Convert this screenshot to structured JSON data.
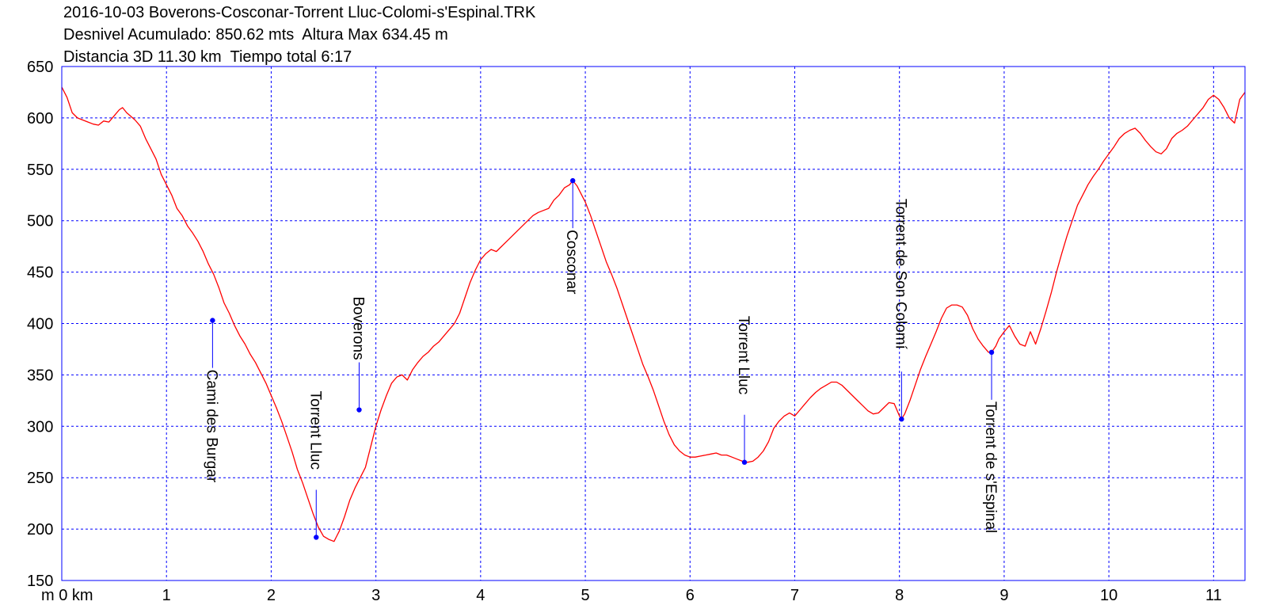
{
  "header": {
    "title": "2016-10-03 Boverons-Cosconar-Torrent Lluc-Colomi-s'Espinal.TRK",
    "line2": "Desnivel Acumulado: 850.62 mts  Altura Max 634.45 m",
    "line3": "Distancia 3D 11.30 km  Tiempo total 6:17"
  },
  "colors": {
    "profile": "#ff0000",
    "grid": "#0000ff",
    "waypoint": "#0000ff",
    "frame": "#0000ff"
  },
  "chart_data": {
    "type": "line",
    "grid": true,
    "xlim": [
      0,
      11.3
    ],
    "ylim": [
      150,
      650
    ],
    "x_unit_label": "m 0 km",
    "x_ticks": [
      1,
      2,
      3,
      4,
      5,
      6,
      7,
      8,
      9,
      10,
      11
    ],
    "y_ticks": [
      150,
      200,
      250,
      300,
      350,
      400,
      450,
      500,
      550,
      600,
      650
    ],
    "series": [
      {
        "points": [
          [
            0.0,
            630
          ],
          [
            0.05,
            620
          ],
          [
            0.1,
            605
          ],
          [
            0.15,
            600
          ],
          [
            0.2,
            598
          ],
          [
            0.25,
            596
          ],
          [
            0.3,
            594
          ],
          [
            0.35,
            593
          ],
          [
            0.4,
            597
          ],
          [
            0.45,
            596
          ],
          [
            0.5,
            602
          ],
          [
            0.55,
            608
          ],
          [
            0.58,
            610
          ],
          [
            0.62,
            605
          ],
          [
            0.7,
            598
          ],
          [
            0.75,
            592
          ],
          [
            0.8,
            580
          ],
          [
            0.85,
            570
          ],
          [
            0.9,
            560
          ],
          [
            0.95,
            545
          ],
          [
            1.0,
            535
          ],
          [
            1.05,
            525
          ],
          [
            1.1,
            512
          ],
          [
            1.15,
            505
          ],
          [
            1.2,
            495
          ],
          [
            1.25,
            488
          ],
          [
            1.3,
            480
          ],
          [
            1.35,
            470
          ],
          [
            1.4,
            458
          ],
          [
            1.45,
            448
          ],
          [
            1.5,
            435
          ],
          [
            1.55,
            420
          ],
          [
            1.6,
            410
          ],
          [
            1.65,
            398
          ],
          [
            1.7,
            388
          ],
          [
            1.75,
            380
          ],
          [
            1.8,
            370
          ],
          [
            1.85,
            362
          ],
          [
            1.9,
            352
          ],
          [
            1.95,
            342
          ],
          [
            2.0,
            330
          ],
          [
            2.05,
            318
          ],
          [
            2.1,
            305
          ],
          [
            2.15,
            290
          ],
          [
            2.2,
            275
          ],
          [
            2.25,
            258
          ],
          [
            2.3,
            245
          ],
          [
            2.35,
            230
          ],
          [
            2.4,
            215
          ],
          [
            2.45,
            202
          ],
          [
            2.5,
            193
          ],
          [
            2.55,
            190
          ],
          [
            2.6,
            188
          ],
          [
            2.62,
            192
          ],
          [
            2.65,
            198
          ],
          [
            2.7,
            212
          ],
          [
            2.75,
            228
          ],
          [
            2.8,
            240
          ],
          [
            2.85,
            250
          ],
          [
            2.9,
            260
          ],
          [
            2.95,
            280
          ],
          [
            3.0,
            300
          ],
          [
            3.05,
            316
          ],
          [
            3.1,
            330
          ],
          [
            3.15,
            342
          ],
          [
            3.2,
            348
          ],
          [
            3.25,
            350
          ],
          [
            3.3,
            345
          ],
          [
            3.35,
            355
          ],
          [
            3.4,
            362
          ],
          [
            3.45,
            368
          ],
          [
            3.5,
            372
          ],
          [
            3.55,
            378
          ],
          [
            3.6,
            382
          ],
          [
            3.65,
            388
          ],
          [
            3.7,
            394
          ],
          [
            3.75,
            400
          ],
          [
            3.8,
            410
          ],
          [
            3.85,
            425
          ],
          [
            3.9,
            440
          ],
          [
            3.95,
            452
          ],
          [
            4.0,
            462
          ],
          [
            4.05,
            468
          ],
          [
            4.1,
            472
          ],
          [
            4.15,
            470
          ],
          [
            4.2,
            475
          ],
          [
            4.25,
            480
          ],
          [
            4.3,
            485
          ],
          [
            4.35,
            490
          ],
          [
            4.4,
            495
          ],
          [
            4.45,
            500
          ],
          [
            4.5,
            505
          ],
          [
            4.55,
            508
          ],
          [
            4.6,
            510
          ],
          [
            4.65,
            512
          ],
          [
            4.7,
            520
          ],
          [
            4.75,
            525
          ],
          [
            4.8,
            532
          ],
          [
            4.85,
            535
          ],
          [
            4.88,
            539
          ],
          [
            4.92,
            534
          ],
          [
            4.95,
            528
          ],
          [
            5.0,
            518
          ],
          [
            5.05,
            505
          ],
          [
            5.1,
            490
          ],
          [
            5.15,
            475
          ],
          [
            5.2,
            460
          ],
          [
            5.25,
            448
          ],
          [
            5.3,
            435
          ],
          [
            5.35,
            420
          ],
          [
            5.4,
            405
          ],
          [
            5.45,
            390
          ],
          [
            5.5,
            375
          ],
          [
            5.55,
            360
          ],
          [
            5.6,
            348
          ],
          [
            5.65,
            335
          ],
          [
            5.7,
            320
          ],
          [
            5.75,
            305
          ],
          [
            5.8,
            292
          ],
          [
            5.85,
            282
          ],
          [
            5.9,
            276
          ],
          [
            5.95,
            272
          ],
          [
            6.0,
            270
          ],
          [
            6.05,
            270
          ],
          [
            6.1,
            271
          ],
          [
            6.15,
            272
          ],
          [
            6.2,
            273
          ],
          [
            6.25,
            274
          ],
          [
            6.3,
            272
          ],
          [
            6.35,
            272
          ],
          [
            6.4,
            270
          ],
          [
            6.45,
            268
          ],
          [
            6.5,
            266
          ],
          [
            6.55,
            265
          ],
          [
            6.6,
            266
          ],
          [
            6.65,
            270
          ],
          [
            6.7,
            276
          ],
          [
            6.75,
            285
          ],
          [
            6.8,
            298
          ],
          [
            6.85,
            305
          ],
          [
            6.9,
            310
          ],
          [
            6.95,
            313
          ],
          [
            7.0,
            310
          ],
          [
            7.05,
            316
          ],
          [
            7.1,
            322
          ],
          [
            7.15,
            328
          ],
          [
            7.2,
            333
          ],
          [
            7.25,
            337
          ],
          [
            7.3,
            340
          ],
          [
            7.35,
            343
          ],
          [
            7.4,
            343
          ],
          [
            7.45,
            340
          ],
          [
            7.5,
            335
          ],
          [
            7.55,
            330
          ],
          [
            7.6,
            325
          ],
          [
            7.65,
            320
          ],
          [
            7.7,
            315
          ],
          [
            7.75,
            312
          ],
          [
            7.8,
            313
          ],
          [
            7.85,
            318
          ],
          [
            7.9,
            323
          ],
          [
            7.95,
            322
          ],
          [
            8.0,
            310
          ],
          [
            8.02,
            307
          ],
          [
            8.05,
            312
          ],
          [
            8.1,
            325
          ],
          [
            8.15,
            340
          ],
          [
            8.2,
            355
          ],
          [
            8.25,
            368
          ],
          [
            8.3,
            380
          ],
          [
            8.35,
            392
          ],
          [
            8.4,
            405
          ],
          [
            8.45,
            415
          ],
          [
            8.5,
            418
          ],
          [
            8.55,
            418
          ],
          [
            8.6,
            416
          ],
          [
            8.65,
            408
          ],
          [
            8.7,
            395
          ],
          [
            8.75,
            385
          ],
          [
            8.8,
            378
          ],
          [
            8.85,
            372
          ],
          [
            8.88,
            372
          ],
          [
            8.92,
            378
          ],
          [
            8.95,
            385
          ],
          [
            9.0,
            392
          ],
          [
            9.05,
            398
          ],
          [
            9.1,
            388
          ],
          [
            9.15,
            380
          ],
          [
            9.2,
            378
          ],
          [
            9.25,
            392
          ],
          [
            9.3,
            380
          ],
          [
            9.35,
            395
          ],
          [
            9.4,
            412
          ],
          [
            9.45,
            430
          ],
          [
            9.5,
            450
          ],
          [
            9.55,
            468
          ],
          [
            9.6,
            485
          ],
          [
            9.65,
            500
          ],
          [
            9.7,
            515
          ],
          [
            9.75,
            525
          ],
          [
            9.8,
            535
          ],
          [
            9.85,
            543
          ],
          [
            9.9,
            550
          ],
          [
            9.95,
            558
          ],
          [
            10.0,
            565
          ],
          [
            10.05,
            572
          ],
          [
            10.1,
            580
          ],
          [
            10.15,
            585
          ],
          [
            10.2,
            588
          ],
          [
            10.25,
            590
          ],
          [
            10.3,
            585
          ],
          [
            10.35,
            578
          ],
          [
            10.4,
            572
          ],
          [
            10.45,
            567
          ],
          [
            10.5,
            565
          ],
          [
            10.55,
            570
          ],
          [
            10.6,
            580
          ],
          [
            10.65,
            585
          ],
          [
            10.7,
            588
          ],
          [
            10.75,
            592
          ],
          [
            10.8,
            598
          ],
          [
            10.85,
            604
          ],
          [
            10.9,
            610
          ],
          [
            10.95,
            618
          ],
          [
            11.0,
            622
          ],
          [
            11.05,
            618
          ],
          [
            11.1,
            610
          ],
          [
            11.15,
            600
          ],
          [
            11.2,
            595
          ],
          [
            11.25,
            618
          ],
          [
            11.3,
            625
          ]
        ]
      }
    ],
    "waypoints": [
      {
        "name": "Cami des Burgar",
        "x": 1.44,
        "y": 403
      },
      {
        "name": "Torrent Lluc",
        "x": 2.43,
        "y": 192
      },
      {
        "name": "Boverons",
        "x": 2.84,
        "y": 316
      },
      {
        "name": "Cosconar",
        "x": 4.88,
        "y": 539
      },
      {
        "name": "Torrent Lluc",
        "x": 6.52,
        "y": 265
      },
      {
        "name": "Torrent de Son Colomí",
        "x": 8.02,
        "y": 307
      },
      {
        "name": "Torrent de s'Espinal",
        "x": 8.88,
        "y": 372
      }
    ]
  }
}
